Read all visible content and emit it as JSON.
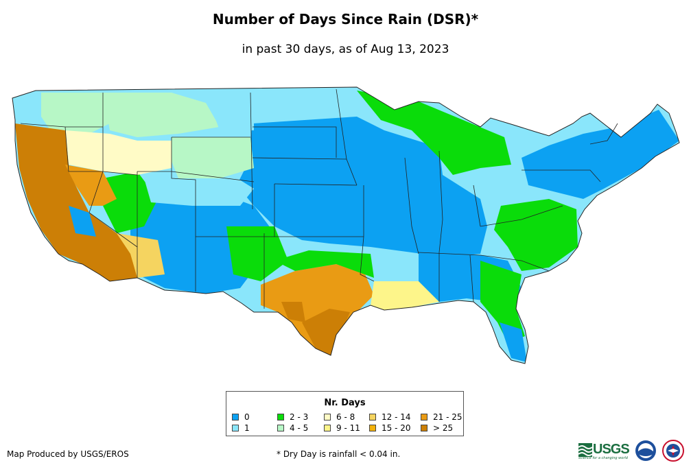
{
  "title": "Number of Days Since Rain (DSR)*",
  "subtitle": "in past 30 days, as of Aug 13, 2023",
  "legend": {
    "title": "Nr. Days",
    "items": [
      {
        "label": "0",
        "color": "#0ca1f2"
      },
      {
        "label": "1",
        "color": "#8ae6fb"
      },
      {
        "label": "2 - 3",
        "color": "#0adc0a"
      },
      {
        "label": "4 - 5",
        "color": "#b7f7c6"
      },
      {
        "label": "6 - 8",
        "color": "#fffbc6"
      },
      {
        "label": "9 - 11",
        "color": "#fdf58a"
      },
      {
        "label": "12 - 14",
        "color": "#f5d460"
      },
      {
        "label": "15 - 20",
        "color": "#f3b20c"
      },
      {
        "label": "21 - 25",
        "color": "#e99b14"
      },
      {
        "label": "> 25",
        "color": "#cc7f06"
      }
    ]
  },
  "credit": "Map Produced by USGS/EROS",
  "note": "* Dry Day is rainfall < 0.04 in.",
  "logos": {
    "usgs_text": "USGS",
    "usgs_tagline": "science for a changing world",
    "noaa_icon": "noaa-seal-icon",
    "nws_icon": "nws-seal-icon"
  }
}
